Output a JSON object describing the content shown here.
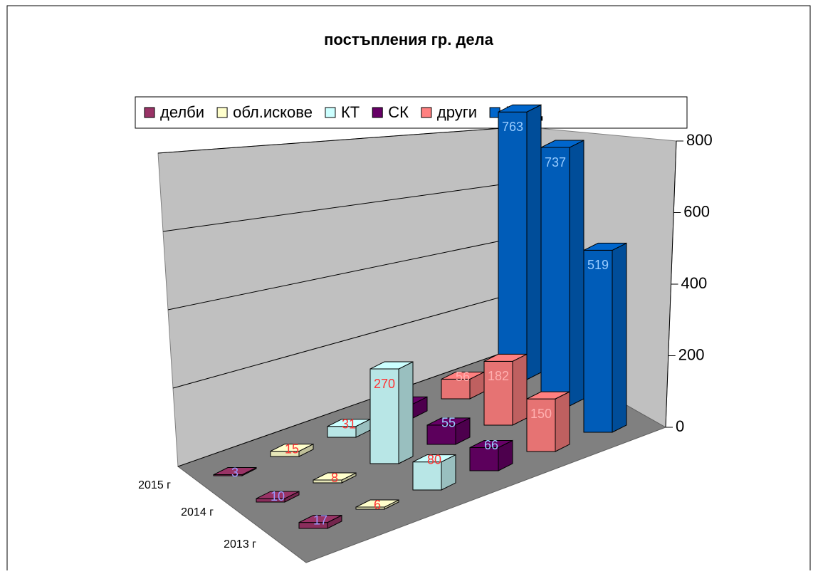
{
  "chart_data": {
    "type": "bar3d",
    "title": "постъпления гр. дела",
    "categories": [
      "2015 г",
      "2014 г",
      "2013 г"
    ],
    "series": [
      {
        "name": "делби",
        "color": "#993366",
        "label_color": "#9999ff",
        "values": [
          3,
          10,
          17
        ]
      },
      {
        "name": "обл.искове",
        "color": "#ffffcc",
        "label_color": "#ff3333",
        "values": [
          15,
          8,
          6
        ]
      },
      {
        "name": "КТ",
        "color": "#ccffff",
        "label_color": "#ff3333",
        "values": [
          31,
          270,
          80
        ]
      },
      {
        "name": "СК",
        "color": "#660066",
        "label_color": "#99ccff",
        "values": [
          40,
          55,
          66
        ]
      },
      {
        "name": "други",
        "color": "#ff8080",
        "label_color": "#ffb0b0",
        "values": [
          56,
          182,
          150
        ]
      },
      {
        "name": "ЧГрД",
        "color": "#0066cc",
        "label_color": "#99ccff",
        "values": [
          763,
          737,
          519
        ]
      }
    ],
    "ylim": [
      0,
      800
    ],
    "yticks": [
      0,
      200,
      400,
      600,
      800
    ],
    "grid": true,
    "legend": "top"
  }
}
